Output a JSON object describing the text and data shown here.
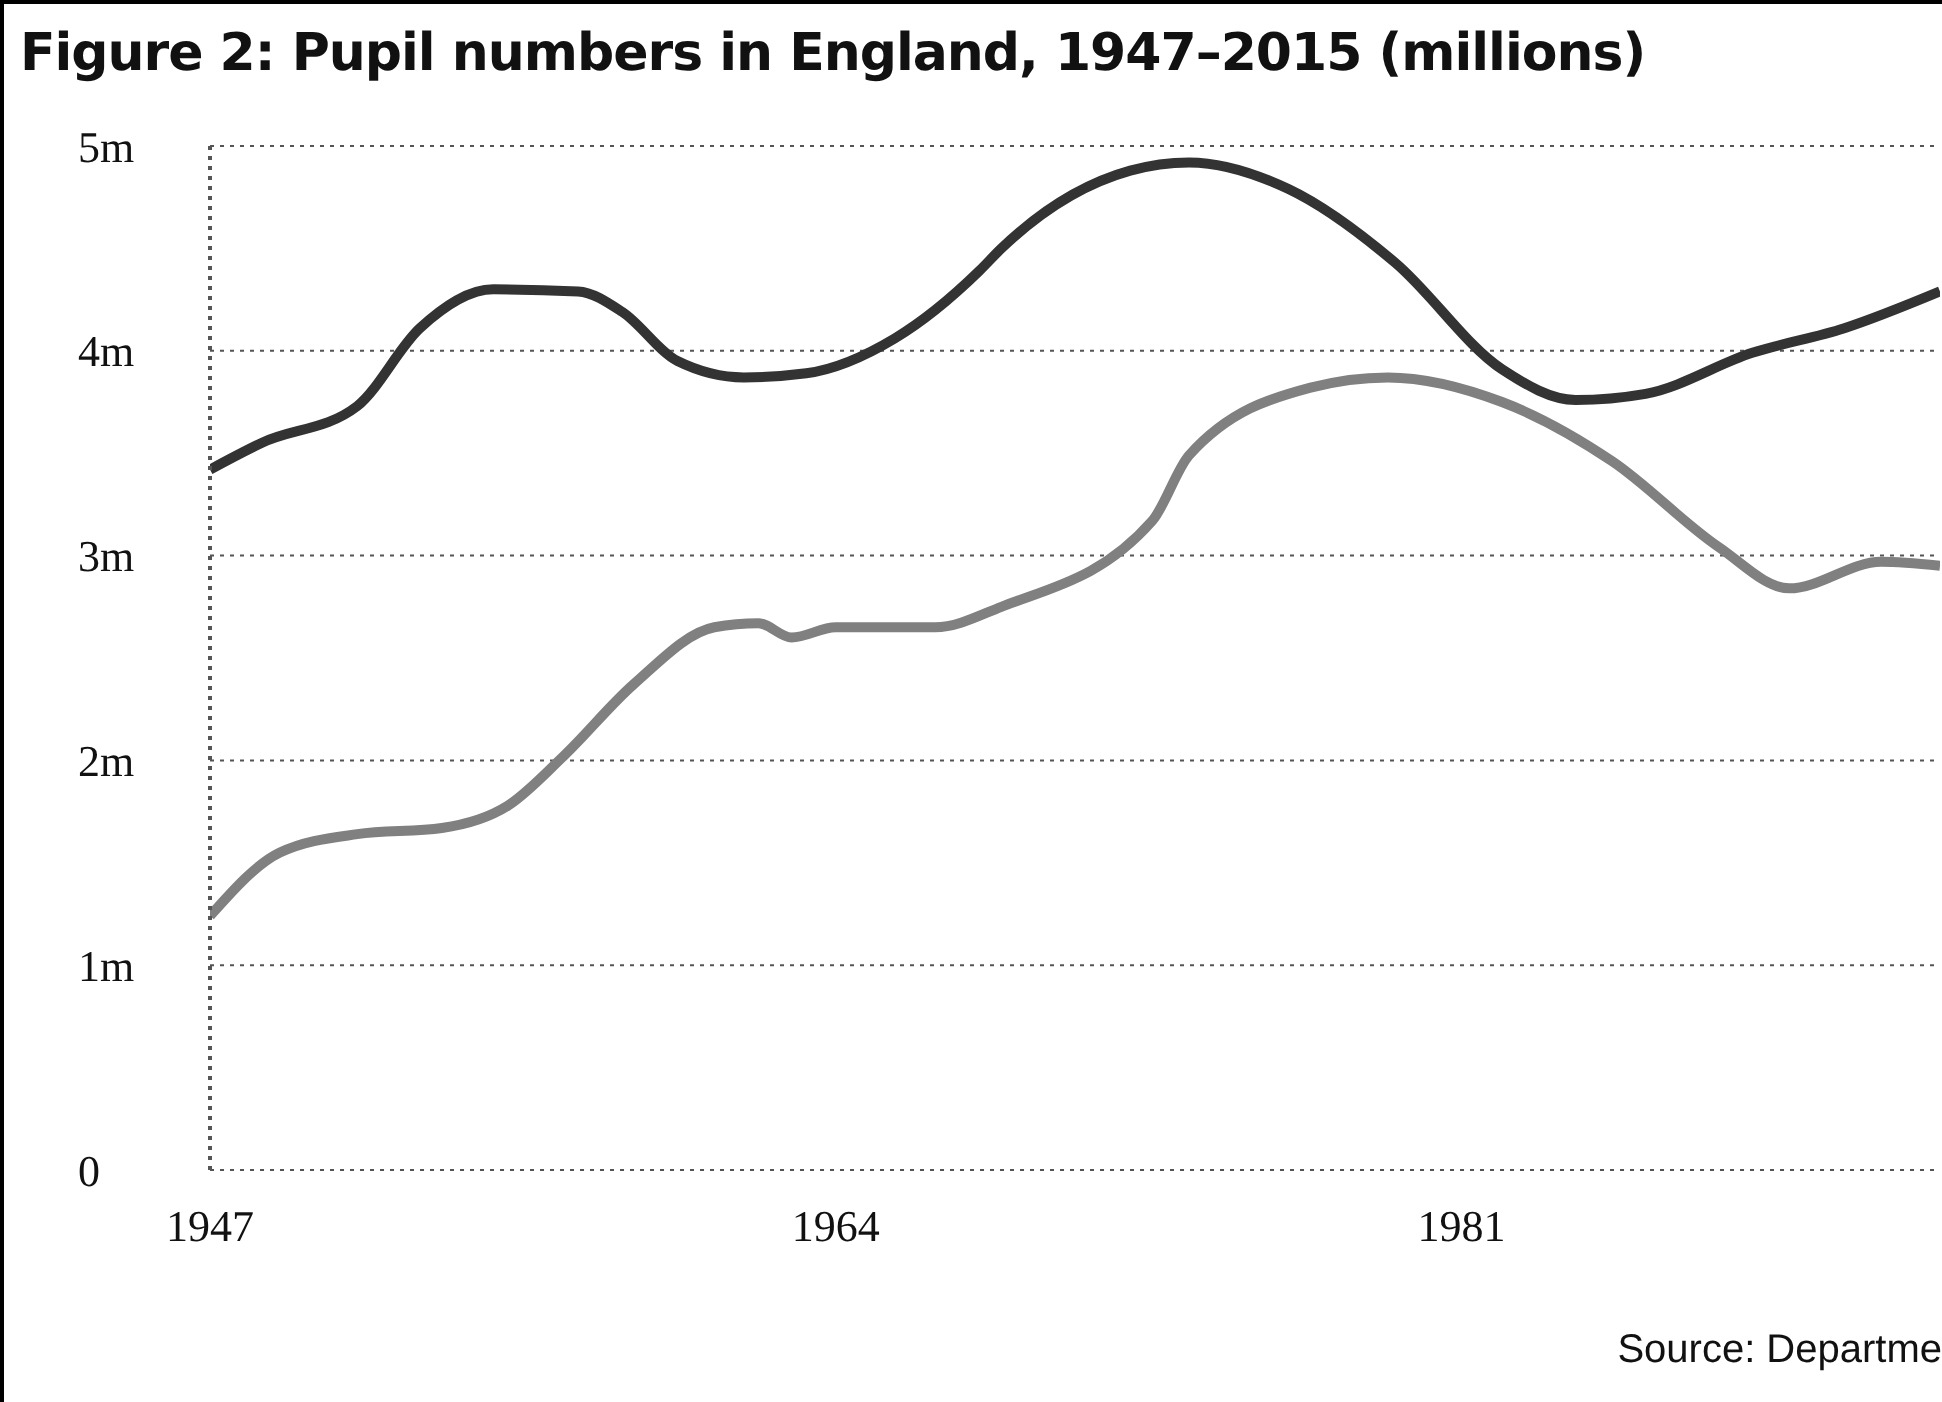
{
  "chart_data": {
    "type": "line",
    "title": "Figure 2: Pupil numbers in England, 1947–2015 (millions)",
    "series": [
      {
        "color": "#333333",
        "x": [
          1947,
          1948.4,
          1951,
          1952.7,
          1954.7,
          1957,
          1958.2,
          1959.7,
          1961.5,
          1963.2,
          1965.6,
          1967.9,
          1968.5,
          1972,
          1973.6,
          1976.3,
          1979.2,
          1982.1,
          1984.1,
          1986,
          1988.9,
          1991.4,
          1994
        ],
        "values": [
          3.42,
          3.55,
          3.73,
          4.11,
          4.3,
          4.29,
          4.19,
          3.95,
          3.87,
          3.89,
          4.06,
          4.39,
          4.5,
          4.88,
          4.92,
          4.79,
          4.43,
          3.91,
          3.76,
          3.79,
          3.99,
          4.11,
          4.29
        ]
      },
      {
        "color": "#808080",
        "x": [
          1947,
          1948.9,
          1951,
          1953.3,
          1955.1,
          1956.6,
          1958.5,
          1960.7,
          1961.9,
          1962.8,
          1964,
          1966.7,
          1968.5,
          1972.6,
          1973.6,
          1976.9,
          1979,
          1982.1,
          1985.1,
          1988,
          1989.9,
          1992.4,
          1994
        ],
        "values": [
          1.24,
          1.55,
          1.64,
          1.67,
          1.78,
          2.02,
          2.37,
          2.65,
          2.67,
          2.6,
          2.65,
          2.65,
          2.75,
          3.17,
          3.49,
          3.82,
          3.87,
          3.75,
          3.46,
          3.04,
          2.84,
          2.97,
          2.95
        ]
      }
    ],
    "xlim": [
      1947,
      1994
    ],
    "xticks": [
      1947,
      1964,
      1981
    ],
    "ylim": [
      0,
      5
    ],
    "yticks": [
      {
        "value": 0,
        "label": "0"
      },
      {
        "value": 1,
        "label": "1m"
      },
      {
        "value": 2,
        "label": "2m"
      },
      {
        "value": 3,
        "label": "3m"
      },
      {
        "value": 4,
        "label": "4m"
      },
      {
        "value": 5,
        "label": "5m"
      }
    ],
    "grid": "y",
    "legend": false,
    "annotations": [
      "Source: Departme"
    ]
  }
}
